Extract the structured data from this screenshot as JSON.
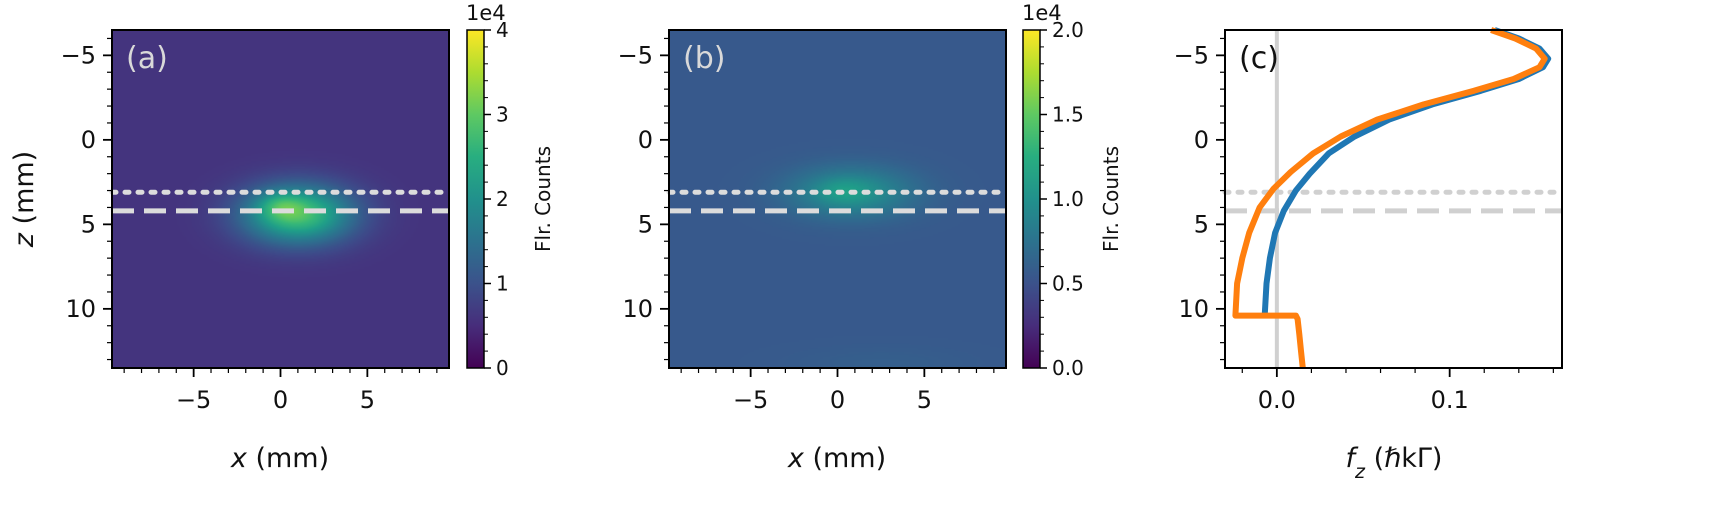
{
  "chart_data": [
    {
      "type": "heatmap",
      "panel_label": "(a)",
      "xlabel_var": "x",
      "xlabel_unit": " (mm)",
      "ylabel_var": "z",
      "ylabel_unit": " (mm)",
      "xlim": [
        -9.7,
        9.7
      ],
      "ylim": [
        13.5,
        -6.5
      ],
      "xticks": [
        -5,
        0,
        5
      ],
      "yticks": [
        -5,
        0,
        5,
        10
      ],
      "background_level": 0.15,
      "blobs": [
        {
          "x": 1.0,
          "z": 4.4,
          "sx": 2.2,
          "sz": 1.2,
          "amp": 2.1
        },
        {
          "x": 0.0,
          "z": 3.9,
          "sx": 0.9,
          "sz": 0.55,
          "amp": 0.5
        }
      ],
      "dotted_line_z": 3.1,
      "dashed_line_z": 4.2,
      "line_color": "#dcdcdc",
      "colorbar": {
        "label": "Flr. Counts",
        "exponent": "1e4",
        "min": 0,
        "max": 4,
        "ticks": [
          "0",
          "1",
          "2",
          "3",
          "4"
        ]
      }
    },
    {
      "type": "heatmap",
      "panel_label": "(b)",
      "xlabel_var": "x",
      "xlabel_unit": " (mm)",
      "xlim": [
        -9.7,
        9.7
      ],
      "ylim": [
        13.5,
        -6.5
      ],
      "xticks": [
        -5,
        0,
        5
      ],
      "yticks": [
        -5,
        0,
        5,
        10
      ],
      "background_level": 0.28,
      "blobs": [
        {
          "x": 0.8,
          "z": 3.1,
          "sx": 2.4,
          "sz": 1.0,
          "amp": 0.9
        },
        {
          "x": 0.2,
          "z": 3.0,
          "sx": 1.0,
          "sz": 0.5,
          "amp": 0.2
        },
        {
          "x": 2.5,
          "z": 13.2,
          "sx": 3.5,
          "sz": 0.7,
          "amp": 0.08
        }
      ],
      "dotted_line_z": 3.1,
      "dashed_line_z": 4.2,
      "line_color": "#dcdcdc",
      "colorbar": {
        "label": "Flr. Counts",
        "exponent": "1e4",
        "min": 0.0,
        "max": 2.0,
        "ticks": [
          "0.0",
          "0.5",
          "1.0",
          "1.5",
          "2.0"
        ]
      }
    },
    {
      "type": "line",
      "panel_label": "(c)",
      "xlabel_var": "f",
      "xlabel_sub": "z",
      "xlabel_unit": " (ℏkΓ)",
      "xlim": [
        -0.03,
        0.165
      ],
      "ylim": [
        13.5,
        -6.5
      ],
      "xticks": [
        "0.0",
        "0.1"
      ],
      "yticks": [
        -5,
        0,
        5,
        10
      ],
      "vline_x": 0.0,
      "dotted_line_z": 3.1,
      "dashed_line_z": 4.2,
      "reference_line_color": "#d0d0d0",
      "series": [
        {
          "color": "#1f77b4",
          "points": [
            [
              0.126,
              -6.5
            ],
            [
              0.14,
              -6.0
            ],
            [
              0.152,
              -5.4
            ],
            [
              0.157,
              -4.8
            ],
            [
              0.154,
              -4.3
            ],
            [
              0.14,
              -3.6
            ],
            [
              0.118,
              -2.9
            ],
            [
              0.09,
              -2.1
            ],
            [
              0.065,
              -1.2
            ],
            [
              0.045,
              -0.2
            ],
            [
              0.03,
              0.8
            ],
            [
              0.019,
              2.0
            ],
            [
              0.011,
              3.0
            ],
            [
              0.004,
              4.2
            ],
            [
              -0.001,
              5.5
            ],
            [
              -0.004,
              7.0
            ],
            [
              -0.006,
              8.5
            ],
            [
              -0.007,
              10.4
            ]
          ]
        },
        {
          "color": "#ff7f0e",
          "points": [
            [
              0.124,
              -6.5
            ],
            [
              0.138,
              -6.0
            ],
            [
              0.15,
              -5.4
            ],
            [
              0.155,
              -4.8
            ],
            [
              0.152,
              -4.3
            ],
            [
              0.137,
              -3.6
            ],
            [
              0.114,
              -2.9
            ],
            [
              0.085,
              -2.1
            ],
            [
              0.058,
              -1.2
            ],
            [
              0.037,
              -0.2
            ],
            [
              0.021,
              0.8
            ],
            [
              0.008,
              1.9
            ],
            [
              -0.002,
              2.9
            ],
            [
              -0.01,
              4.0
            ],
            [
              -0.016,
              5.5
            ],
            [
              -0.02,
              7.0
            ],
            [
              -0.023,
              8.5
            ],
            [
              -0.024,
              10.4
            ],
            [
              0.011,
              10.4
            ],
            [
              0.012,
              10.6
            ],
            [
              0.013,
              11.5
            ],
            [
              0.014,
              12.5
            ],
            [
              0.015,
              13.5
            ]
          ]
        }
      ]
    }
  ]
}
